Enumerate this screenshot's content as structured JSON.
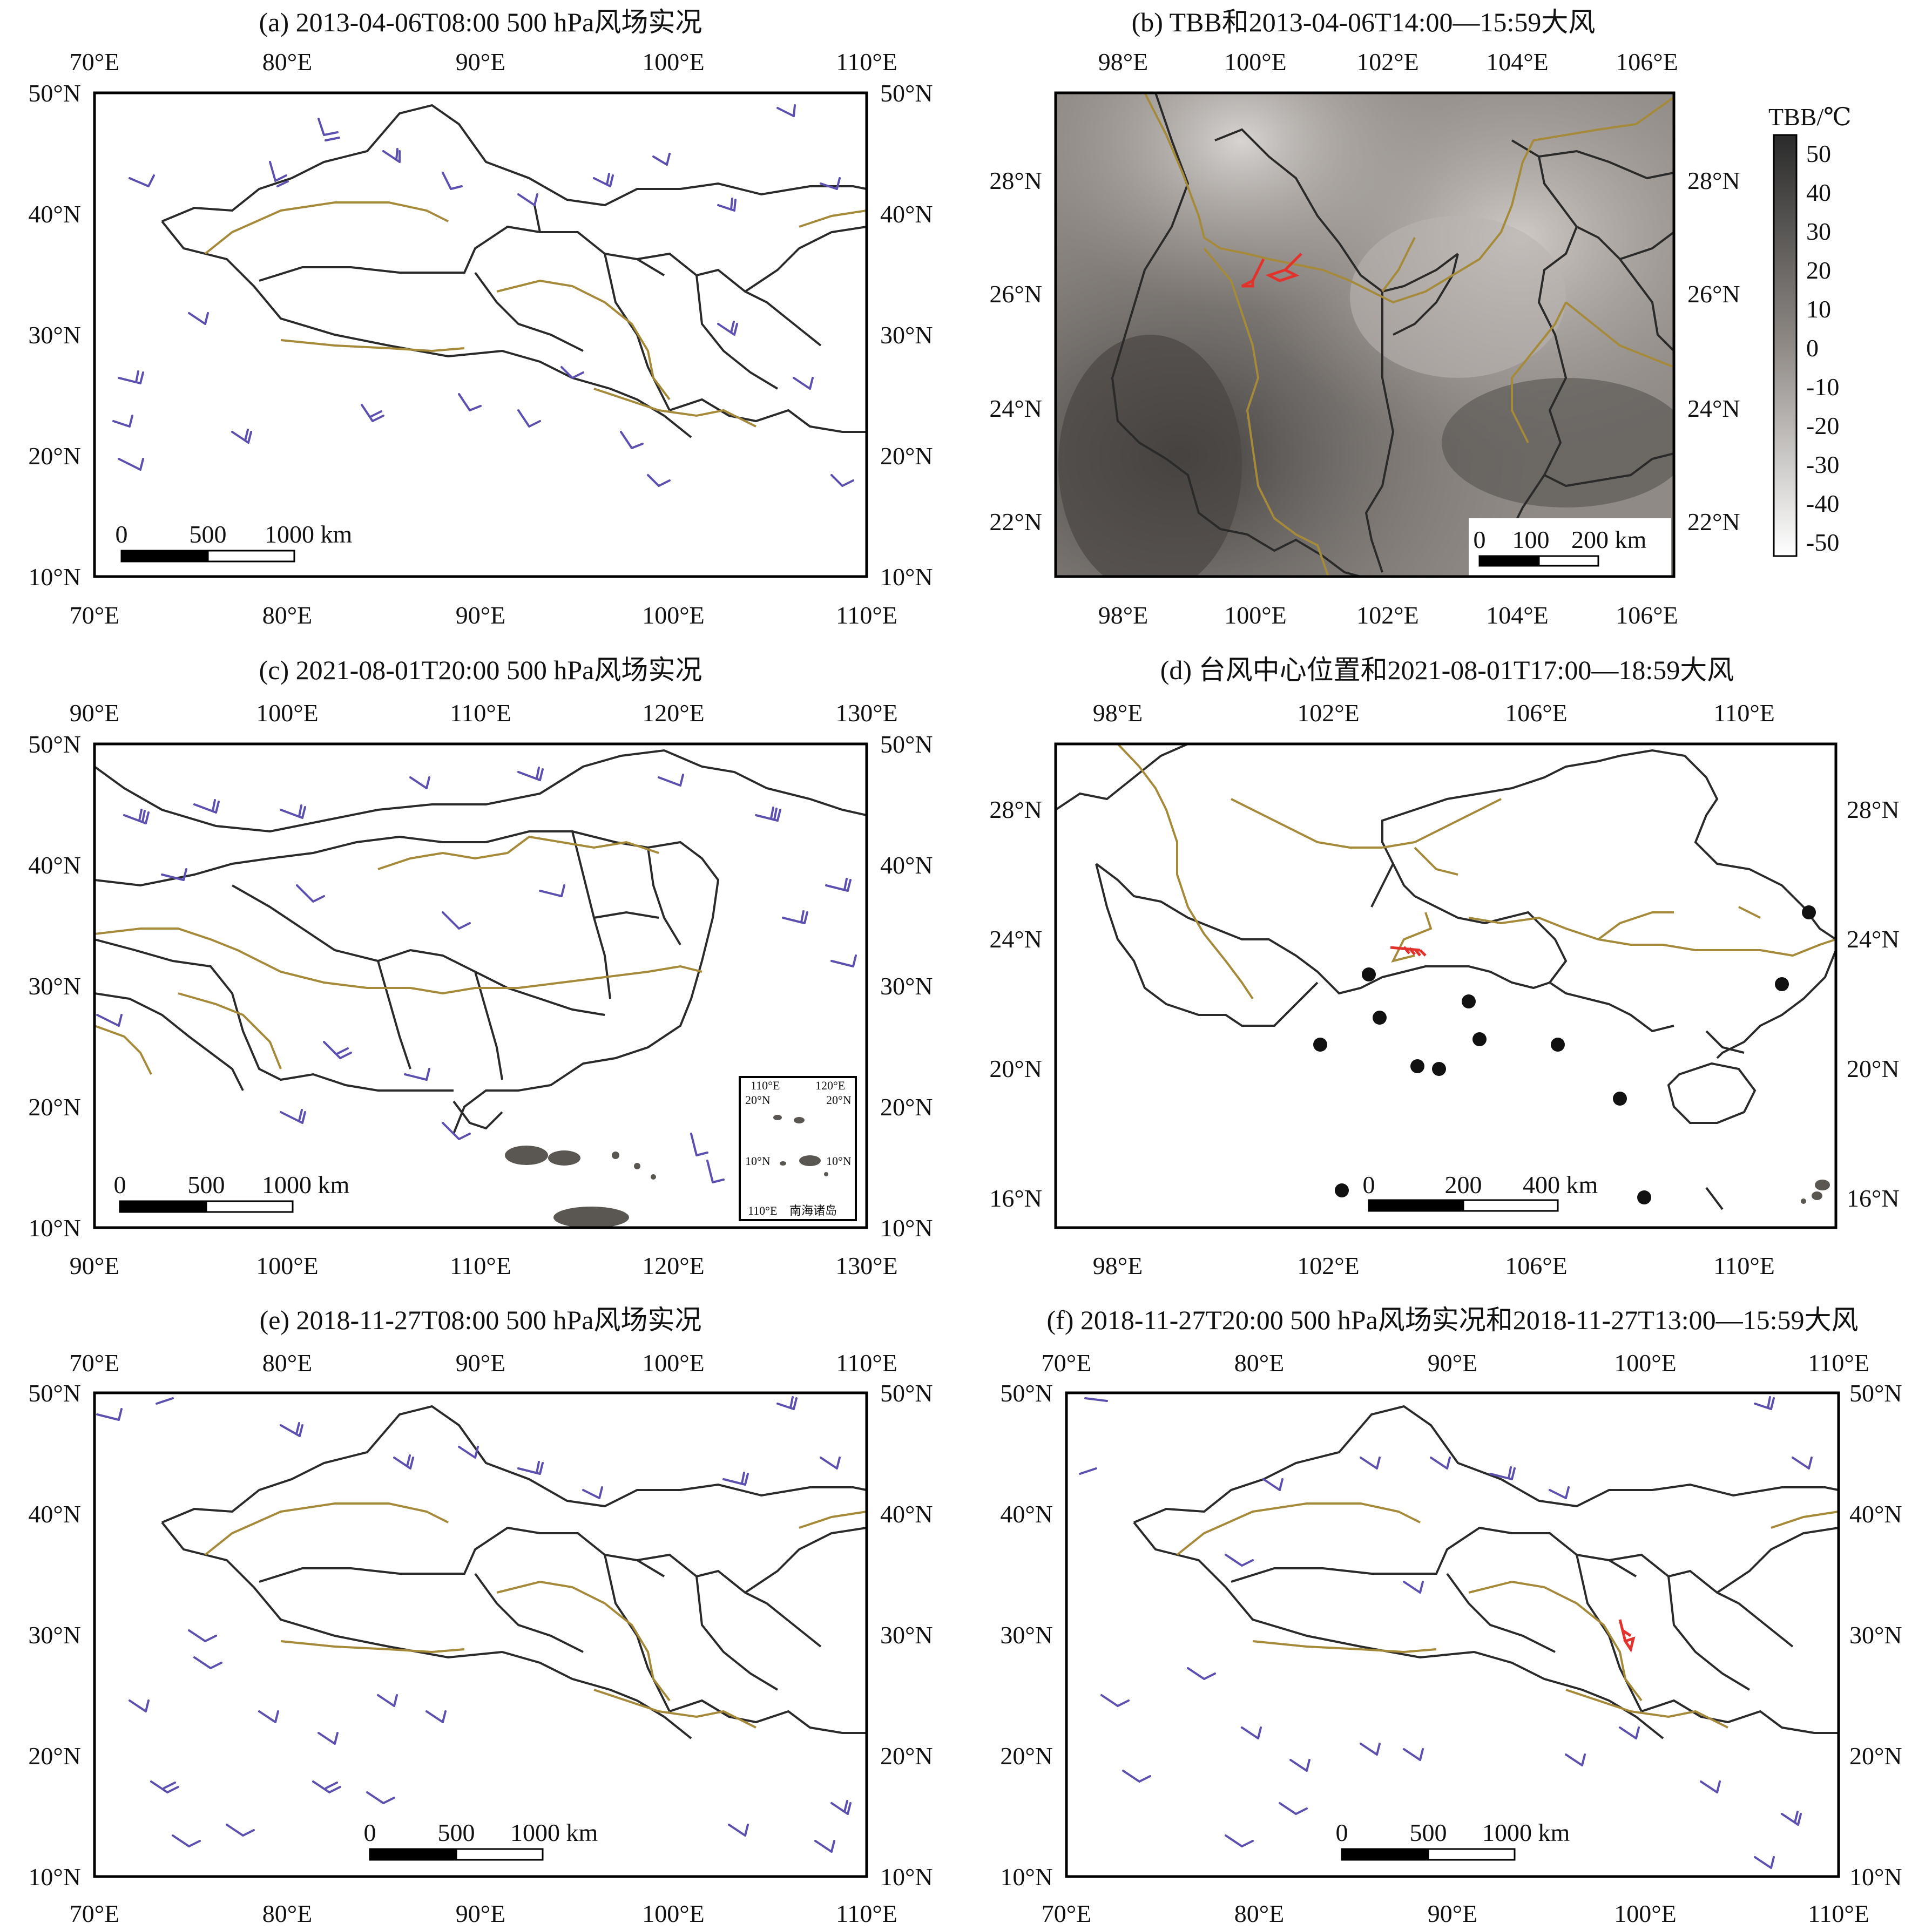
{
  "panels": [
    {
      "id": "a",
      "title": "(a) 2013-04-06T08:00  500 hPa风场实况",
      "x_ticks": [
        "70°E",
        "80°E",
        "90°E",
        "100°E",
        "110°E"
      ],
      "y_ticks": [
        "50°N",
        "40°N",
        "30°N",
        "20°N",
        "10°N"
      ],
      "scale_labels": [
        "0",
        "500",
        "1000 km"
      ]
    },
    {
      "id": "b",
      "title": "(b) TBB和2013-04-06T14:00—15:59大风",
      "x_ticks": [
        "98°E",
        "100°E",
        "102°E",
        "104°E",
        "106°E"
      ],
      "y_ticks": [
        "28°N",
        "26°N",
        "24°N",
        "22°N"
      ],
      "scale_labels": [
        "0",
        "100",
        "200 km"
      ],
      "colorbar": {
        "title": "TBB/℃",
        "labels": [
          "50",
          "40",
          "30",
          "20",
          "10",
          "0",
          "-10",
          "-20",
          "-30",
          "-40",
          "-50"
        ]
      }
    },
    {
      "id": "c",
      "title": "(c) 2021-08-01T20:00  500 hPa风场实况",
      "x_ticks": [
        "90°E",
        "100°E",
        "110°E",
        "120°E",
        "130°E"
      ],
      "y_ticks": [
        "50°N",
        "40°N",
        "30°N",
        "20°N",
        "10°N"
      ],
      "scale_labels": [
        "0",
        "500",
        "1000 km"
      ],
      "inset": {
        "top_ticks": [
          "110°E",
          "120°E"
        ],
        "left_ticks": [
          "20°N",
          "10°N"
        ],
        "right_ticks": [
          "20°N",
          "10°N"
        ],
        "bottom_tick": "110°E",
        "label": "南海诸岛"
      }
    },
    {
      "id": "d",
      "title": "(d) 台风中心位置和2021-08-01T17:00—18:59大风",
      "x_ticks": [
        "98°E",
        "102°E",
        "106°E",
        "110°E"
      ],
      "y_ticks": [
        "28°N",
        "24°N",
        "20°N",
        "16°N"
      ],
      "scale_labels": [
        "0",
        "200",
        "400 km"
      ]
    },
    {
      "id": "e",
      "title": "(e) 2018-11-27T08:00  500 hPa风场实况",
      "x_ticks": [
        "70°E",
        "80°E",
        "90°E",
        "100°E",
        "110°E"
      ],
      "y_ticks": [
        "50°N",
        "40°N",
        "30°N",
        "20°N",
        "10°N"
      ],
      "scale_labels": [
        "0",
        "500",
        "1000 km"
      ]
    },
    {
      "id": "f",
      "title": "(f) 2018-11-27T20:00  500 hPa风场实况和2018-11-27T13:00—15:59大风",
      "x_ticks": [
        "70°E",
        "80°E",
        "90°E",
        "100°E",
        "110°E"
      ],
      "y_ticks": [
        "50°N",
        "40°N",
        "30°N",
        "20°N",
        "10°N"
      ],
      "scale_labels": [
        "0",
        "500",
        "1000 km"
      ]
    }
  ],
  "colors": {
    "wind_barb": "#5b4fb0",
    "gale_barb": "#e3322b",
    "province_border": "#2a2a2a",
    "river": "#a58a3a",
    "typhoon_center": "#111111"
  }
}
